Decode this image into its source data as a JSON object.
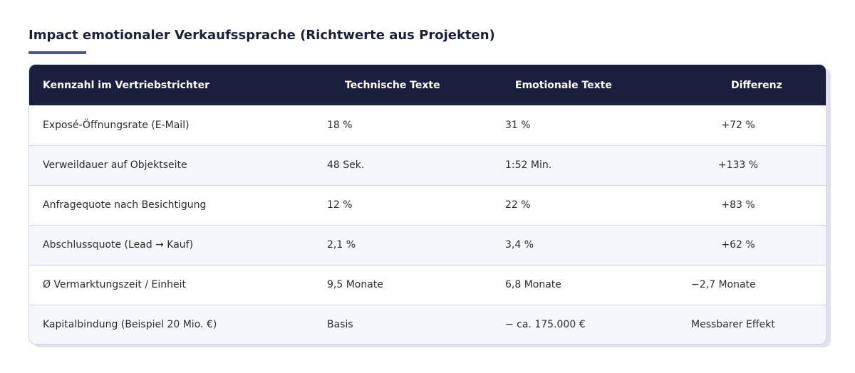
{
  "heading": "Impact emotionaler Verkaufssprache (Richtwerte aus Projekten)",
  "accent_color": "#4a5593",
  "header_color": "#1b1f3e",
  "table": {
    "headers": [
      "Kennzahl im Vertriebstrichter",
      "Technische Texte",
      "Emotionale Texte",
      "Differenz"
    ],
    "rows": [
      [
        "Exposé-Öffnungsrate (E-Mail)",
        "18 %",
        "31 %",
        "+72 %"
      ],
      [
        "Verweildauer auf Objektseite",
        "48 Sek.",
        "1:52 Min.",
        "+133 %"
      ],
      [
        "Anfragequote nach Besichtigung",
        "12 %",
        "22 %",
        "+83 %"
      ],
      [
        "Abschlussquote (Lead → Kauf)",
        "2,1 %",
        "3,4 %",
        "+62 %"
      ],
      [
        "Ø Vermarktungszeit / Einheit",
        "9,5 Monate",
        "6,8 Monate",
        "−2,7 Monate"
      ],
      [
        "Kapitalbindung (Beispiel 20 Mio. €)",
        "Basis",
        "− ca. 175.000 €",
        "Messbarer Effekt"
      ]
    ]
  }
}
